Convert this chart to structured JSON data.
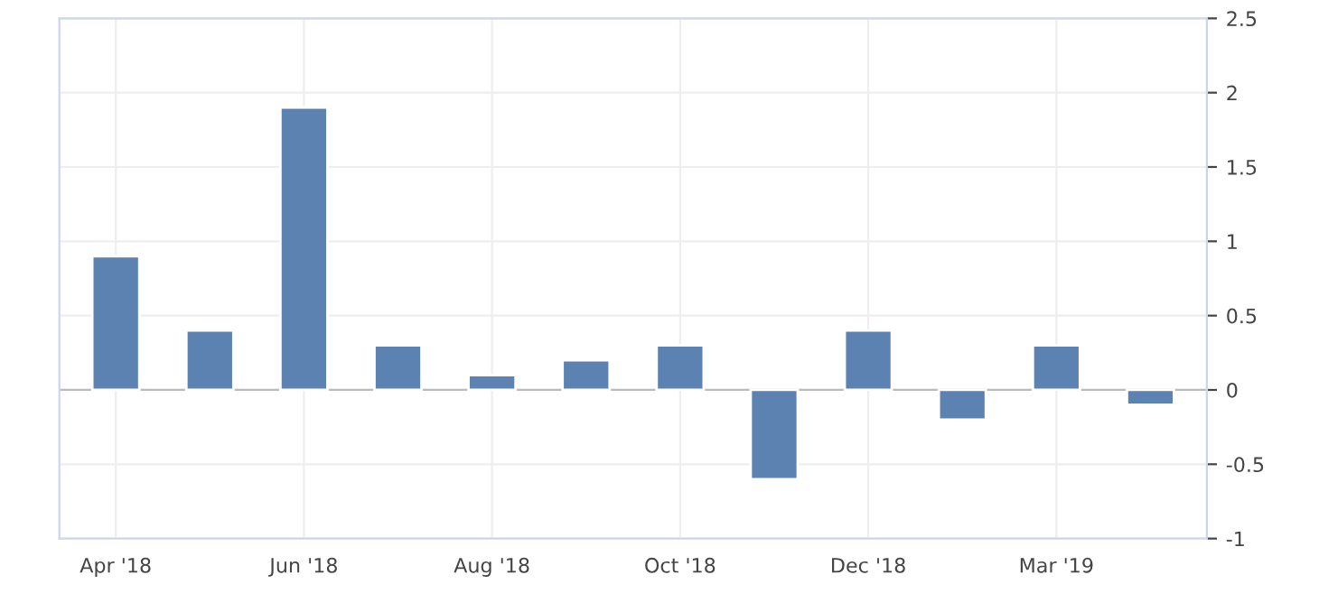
{
  "chart_data": {
    "type": "bar",
    "categories": [
      "Apr '18",
      null,
      "Jun '18",
      null,
      "Aug '18",
      null,
      "Oct '18",
      null,
      "Dec '18",
      null,
      "Mar '19",
      null
    ],
    "values": [
      0.9,
      0.4,
      1.9,
      0.3,
      0.1,
      0.2,
      0.3,
      -0.6,
      0.4,
      -0.2,
      0.3,
      -0.1
    ],
    "color": "#5b82b0",
    "ylim": [
      -1,
      2.5
    ],
    "yticks": [
      -1,
      -0.5,
      0,
      0.5,
      1,
      1.5,
      2,
      2.5
    ],
    "grid": true,
    "legend": false
  }
}
